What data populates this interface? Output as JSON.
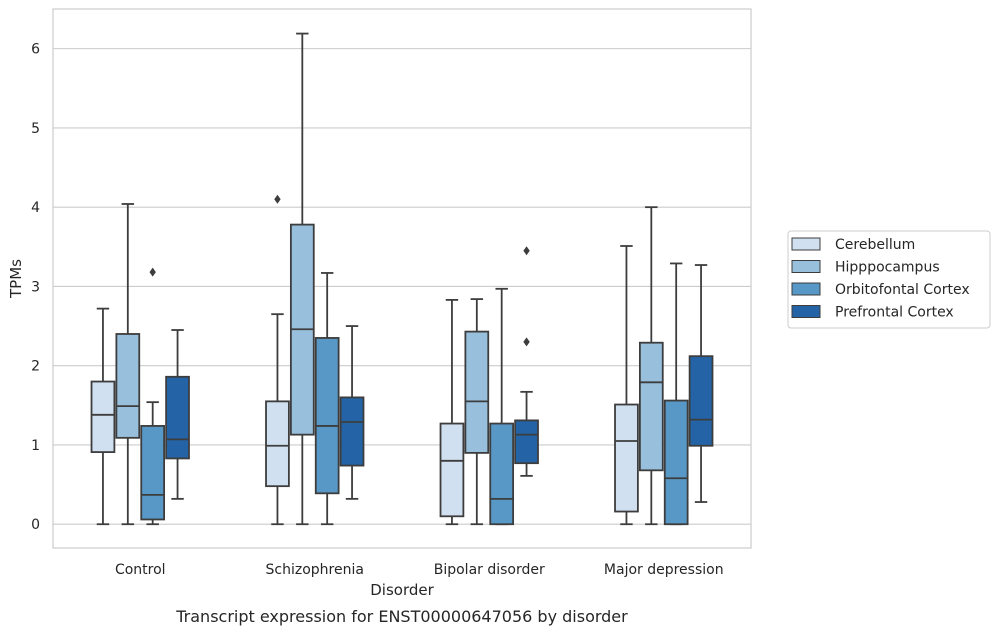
{
  "chart_data": {
    "type": "box",
    "title": "",
    "caption": "Transcript expression for ENST00000647056 by disorder",
    "xlabel": "Disorder",
    "ylabel": "TPMs",
    "ylim": [
      -0.3,
      6.5
    ],
    "yticks": [
      0,
      1,
      2,
      3,
      4,
      5,
      6
    ],
    "grid": "horizontal",
    "legend_position": "right",
    "categories": [
      "Control",
      "Schizophrenia",
      "Bipolar disorder",
      "Major depression"
    ],
    "series": [
      {
        "name": "Cerebellum",
        "color": "#d0e0f0",
        "boxes": [
          {
            "min": 0.0,
            "q1": 0.91,
            "median": 1.38,
            "q3": 1.8,
            "max": 2.72,
            "outliers": []
          },
          {
            "min": 0.0,
            "q1": 0.48,
            "median": 0.99,
            "q3": 1.55,
            "max": 2.65,
            "outliers": [
              4.1
            ]
          },
          {
            "min": 0.0,
            "q1": 0.1,
            "median": 0.8,
            "q3": 1.27,
            "max": 2.83,
            "outliers": []
          },
          {
            "min": 0.0,
            "q1": 0.16,
            "median": 1.05,
            "q3": 1.51,
            "max": 3.51,
            "outliers": []
          }
        ]
      },
      {
        "name": "Hipppocampus",
        "color": "#98c0dc",
        "boxes": [
          {
            "min": 0.0,
            "q1": 1.09,
            "median": 1.49,
            "q3": 2.4,
            "max": 4.04,
            "outliers": []
          },
          {
            "min": 0.0,
            "q1": 1.13,
            "median": 2.46,
            "q3": 3.78,
            "max": 6.19,
            "outliers": []
          },
          {
            "min": 0.0,
            "q1": 0.9,
            "median": 1.55,
            "q3": 2.43,
            "max": 2.84,
            "outliers": []
          },
          {
            "min": 0.0,
            "q1": 0.68,
            "median": 1.79,
            "q3": 2.29,
            "max": 4.0,
            "outliers": []
          }
        ]
      },
      {
        "name": "Orbitofontal Cortex",
        "color": "#5898c6",
        "boxes": [
          {
            "min": 0.0,
            "q1": 0.06,
            "median": 0.37,
            "q3": 1.24,
            "max": 1.54,
            "outliers": [
              3.18
            ]
          },
          {
            "min": 0.0,
            "q1": 0.39,
            "median": 1.24,
            "q3": 2.35,
            "max": 3.17,
            "outliers": []
          },
          {
            "min": 0.0,
            "q1": 0.0,
            "median": 0.32,
            "q3": 1.27,
            "max": 2.97,
            "outliers": []
          },
          {
            "min": 0.0,
            "q1": 0.0,
            "median": 0.58,
            "q3": 1.56,
            "max": 3.29,
            "outliers": []
          }
        ]
      },
      {
        "name": "Prefrontal Cortex",
        "color": "#2464a6",
        "boxes": [
          {
            "min": 0.32,
            "q1": 0.83,
            "median": 1.07,
            "q3": 1.86,
            "max": 2.45,
            "outliers": []
          },
          {
            "min": 0.32,
            "q1": 0.74,
            "median": 1.29,
            "q3": 1.6,
            "max": 2.5,
            "outliers": []
          },
          {
            "min": 0.61,
            "q1": 0.77,
            "median": 1.13,
            "q3": 1.31,
            "max": 1.67,
            "outliers": [
              2.3,
              3.45
            ]
          },
          {
            "min": 0.28,
            "q1": 0.99,
            "median": 1.32,
            "q3": 2.12,
            "max": 3.27,
            "outliers": []
          }
        ]
      }
    ]
  }
}
